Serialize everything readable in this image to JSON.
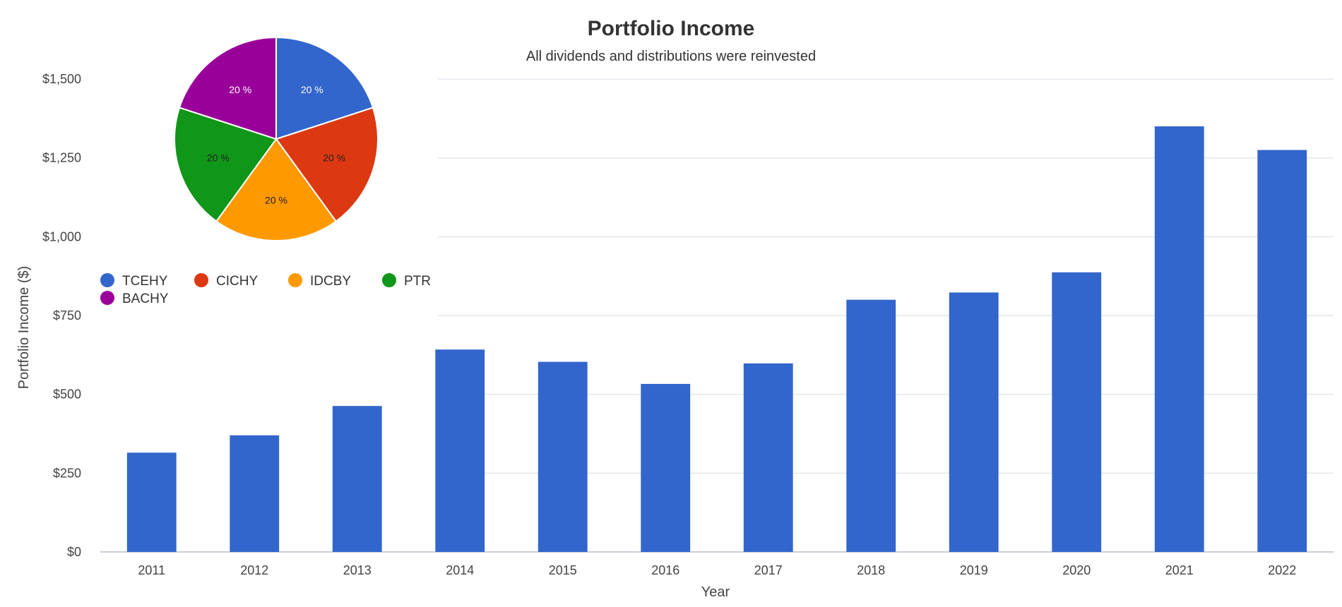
{
  "chart_data": [
    {
      "type": "bar",
      "title": "Portfolio Income",
      "subtitle": "All dividends and distributions were reinvested",
      "xlabel": "Year",
      "ylabel": "Portfolio Income ($)",
      "categories": [
        "2011",
        "2012",
        "2013",
        "2014",
        "2015",
        "2016",
        "2017",
        "2018",
        "2019",
        "2020",
        "2021",
        "2022"
      ],
      "values": [
        315,
        370,
        463,
        642,
        603,
        533,
        598,
        800,
        823,
        887,
        1350,
        1275
      ],
      "ylim": [
        0,
        1500
      ],
      "yticks": [
        0,
        250,
        500,
        750,
        1000,
        1250,
        1500
      ],
      "ytick_labels": [
        "$0",
        "$250",
        "$500",
        "$750",
        "$1,000",
        "$1,250",
        "$1,500"
      ],
      "grid": true,
      "color": "#3366CC"
    },
    {
      "type": "pie",
      "legend_position": "bottom-left",
      "slices": [
        {
          "name": "TCEHY",
          "value": 20,
          "label": "20 %",
          "color": "#3366CC",
          "label_color": "#ffffff"
        },
        {
          "name": "CICHY",
          "value": 20,
          "label": "20 %",
          "color": "#DC3912",
          "label_color": "#222222"
        },
        {
          "name": "IDCBY",
          "value": 20,
          "label": "20 %",
          "color": "#FF9900",
          "label_color": "#222222"
        },
        {
          "name": "PTR",
          "value": 20,
          "label": "20 %",
          "color": "#109618",
          "label_color": "#222222"
        },
        {
          "name": "BACHY",
          "value": 20,
          "label": "20 %",
          "color": "#990099",
          "label_color": "#ffffff"
        }
      ]
    }
  ]
}
